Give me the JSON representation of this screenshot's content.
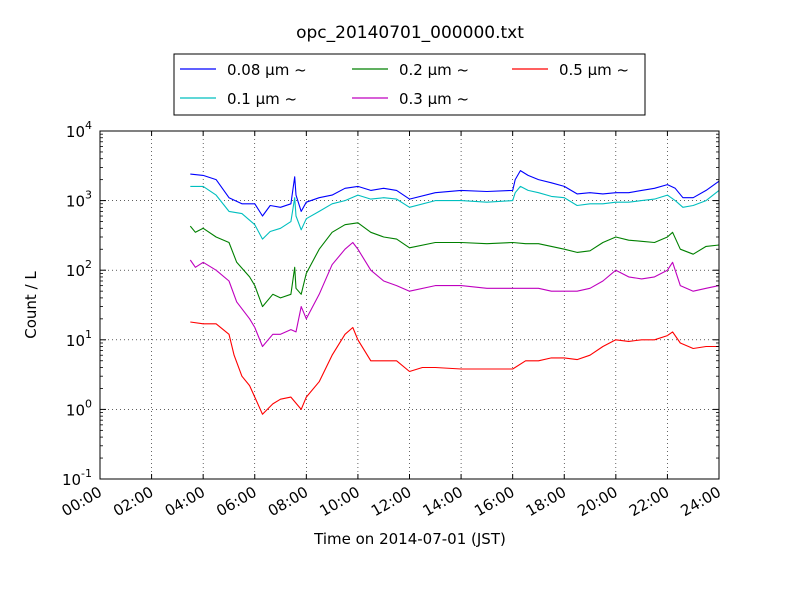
{
  "chart_data": {
    "type": "line",
    "title": "opc_20140701_000000.txt",
    "xlabel": "Time on 2014-07-01 (JST)",
    "ylabel": "Count / L",
    "xlim": [
      0,
      24
    ],
    "ylim": [
      0.1,
      10000
    ],
    "yscale": "log",
    "grid": true,
    "legend_position": "top",
    "x_ticks": [
      0,
      2,
      4,
      6,
      8,
      10,
      12,
      14,
      16,
      18,
      20,
      22,
      24
    ],
    "x_tick_labels": [
      "00:00",
      "02:00",
      "04:00",
      "06:00",
      "08:00",
      "10:00",
      "12:00",
      "14:00",
      "16:00",
      "18:00",
      "20:00",
      "22:00",
      "24:00"
    ],
    "y_ticks": [
      0.1,
      1,
      10,
      100,
      1000,
      10000
    ],
    "y_tick_labels": [
      {
        "base": "10",
        "exp": "-1"
      },
      {
        "base": "10",
        "exp": "0"
      },
      {
        "base": "10",
        "exp": "1"
      },
      {
        "base": "10",
        "exp": "2"
      },
      {
        "base": "10",
        "exp": "3"
      },
      {
        "base": "10",
        "exp": "4"
      }
    ],
    "series": [
      {
        "name": "0.08 μm ~",
        "color": "#0000ff",
        "x": [
          3.5,
          4.0,
          4.5,
          5.0,
          5.5,
          6.0,
          6.3,
          6.6,
          7.0,
          7.4,
          7.55,
          7.6,
          7.8,
          8.0,
          8.5,
          9.0,
          9.5,
          10.0,
          10.5,
          11.0,
          11.5,
          12.0,
          13.0,
          14.0,
          15.0,
          16.0,
          16.1,
          16.3,
          16.6,
          17.0,
          17.5,
          18.0,
          18.5,
          19.0,
          19.5,
          20.0,
          20.5,
          21.0,
          21.5,
          22.0,
          22.3,
          22.6,
          23.0,
          23.5,
          24.0
        ],
        "y": [
          2400,
          2300,
          2000,
          1100,
          900,
          900,
          600,
          850,
          800,
          900,
          2200,
          1200,
          700,
          950,
          1100,
          1200,
          1500,
          1600,
          1400,
          1500,
          1400,
          1050,
          1300,
          1400,
          1350,
          1400,
          2000,
          2700,
          2300,
          2000,
          1800,
          1600,
          1250,
          1300,
          1250,
          1300,
          1300,
          1400,
          1500,
          1700,
          1500,
          1100,
          1100,
          1400,
          1900
        ]
      },
      {
        "name": "0.1 μm ~",
        "color": "#00bfbf",
        "x": [
          3.5,
          4.0,
          4.5,
          5.0,
          5.5,
          6.0,
          6.3,
          6.6,
          7.0,
          7.4,
          7.55,
          7.6,
          7.8,
          8.0,
          8.5,
          9.0,
          9.5,
          10.0,
          10.5,
          11.0,
          11.5,
          12.0,
          13.0,
          14.0,
          15.0,
          16.0,
          16.1,
          16.3,
          16.6,
          17.0,
          17.5,
          18.0,
          18.5,
          19.0,
          19.5,
          20.0,
          20.5,
          21.0,
          21.5,
          22.0,
          22.3,
          22.6,
          23.0,
          23.5,
          24.0
        ],
        "y": [
          1600,
          1600,
          1200,
          700,
          650,
          450,
          280,
          360,
          400,
          500,
          1100,
          600,
          380,
          550,
          700,
          900,
          1000,
          1200,
          1050,
          1100,
          1050,
          800,
          1000,
          1000,
          950,
          1000,
          1300,
          1600,
          1400,
          1300,
          1150,
          1100,
          850,
          900,
          900,
          950,
          950,
          1000,
          1050,
          1200,
          1000,
          800,
          850,
          1000,
          1400
        ]
      },
      {
        "name": "0.2 μm ~",
        "color": "#008000",
        "x": [
          3.5,
          3.7,
          4.0,
          4.5,
          5.0,
          5.3,
          5.8,
          6.0,
          6.3,
          6.7,
          7.0,
          7.4,
          7.55,
          7.6,
          7.8,
          8.0,
          8.5,
          9.0,
          9.5,
          10.0,
          10.5,
          11.0,
          11.5,
          12.0,
          13.0,
          14.0,
          15.0,
          16.0,
          16.5,
          17.0,
          17.5,
          18.0,
          18.5,
          19.0,
          19.5,
          20.0,
          20.5,
          21.0,
          21.5,
          22.0,
          22.2,
          22.5,
          23.0,
          23.5,
          24.0
        ],
        "y": [
          430,
          350,
          400,
          300,
          250,
          130,
          80,
          60,
          30,
          45,
          40,
          45,
          110,
          55,
          45,
          90,
          200,
          350,
          450,
          480,
          350,
          300,
          280,
          210,
          250,
          250,
          240,
          250,
          240,
          240,
          220,
          200,
          180,
          190,
          250,
          300,
          270,
          260,
          250,
          300,
          350,
          200,
          170,
          220,
          230
        ]
      },
      {
        "name": "0.3 μm ~",
        "color": "#bf00bf",
        "x": [
          3.5,
          3.7,
          4.0,
          4.5,
          5.0,
          5.3,
          5.8,
          6.0,
          6.3,
          6.7,
          7.0,
          7.4,
          7.6,
          7.8,
          8.0,
          8.5,
          9.0,
          9.5,
          9.8,
          10.0,
          10.5,
          11.0,
          11.5,
          12.0,
          13.0,
          14.0,
          15.0,
          16.0,
          16.5,
          17.0,
          17.5,
          18.0,
          18.5,
          19.0,
          19.5,
          20.0,
          20.5,
          21.0,
          21.5,
          22.0,
          22.2,
          22.5,
          23.0,
          23.5,
          24.0
        ],
        "y": [
          140,
          110,
          130,
          100,
          70,
          35,
          20,
          15,
          8,
          12,
          12,
          14,
          13,
          30,
          20,
          45,
          120,
          200,
          250,
          200,
          100,
          70,
          60,
          50,
          60,
          60,
          55,
          55,
          55,
          55,
          50,
          50,
          50,
          55,
          70,
          100,
          80,
          75,
          80,
          100,
          130,
          60,
          50,
          55,
          60
        ]
      },
      {
        "name": "0.5 μm ~",
        "color": "#ff0000",
        "x": [
          3.5,
          4.0,
          4.5,
          5.0,
          5.2,
          5.5,
          5.8,
          6.0,
          6.3,
          6.7,
          7.0,
          7.4,
          7.8,
          8.0,
          8.5,
          9.0,
          9.5,
          9.8,
          10.0,
          10.5,
          11.0,
          11.5,
          12.0,
          12.5,
          13.0,
          14.0,
          15.0,
          16.0,
          16.5,
          17.0,
          17.5,
          18.0,
          18.5,
          19.0,
          19.5,
          20.0,
          20.5,
          21.0,
          21.5,
          22.0,
          22.2,
          22.5,
          23.0,
          23.5,
          24.0
        ],
        "y": [
          18,
          17,
          17,
          12,
          6,
          3,
          2.2,
          1.5,
          0.85,
          1.2,
          1.4,
          1.5,
          1.0,
          1.5,
          2.5,
          6,
          12,
          15,
          10,
          5,
          5,
          5,
          3.5,
          4,
          4,
          3.8,
          3.8,
          3.8,
          5,
          5,
          5.5,
          5.5,
          5.2,
          6,
          8,
          10,
          9.5,
          10,
          10,
          11.5,
          13,
          9,
          7.5,
          8,
          8
        ]
      }
    ]
  }
}
